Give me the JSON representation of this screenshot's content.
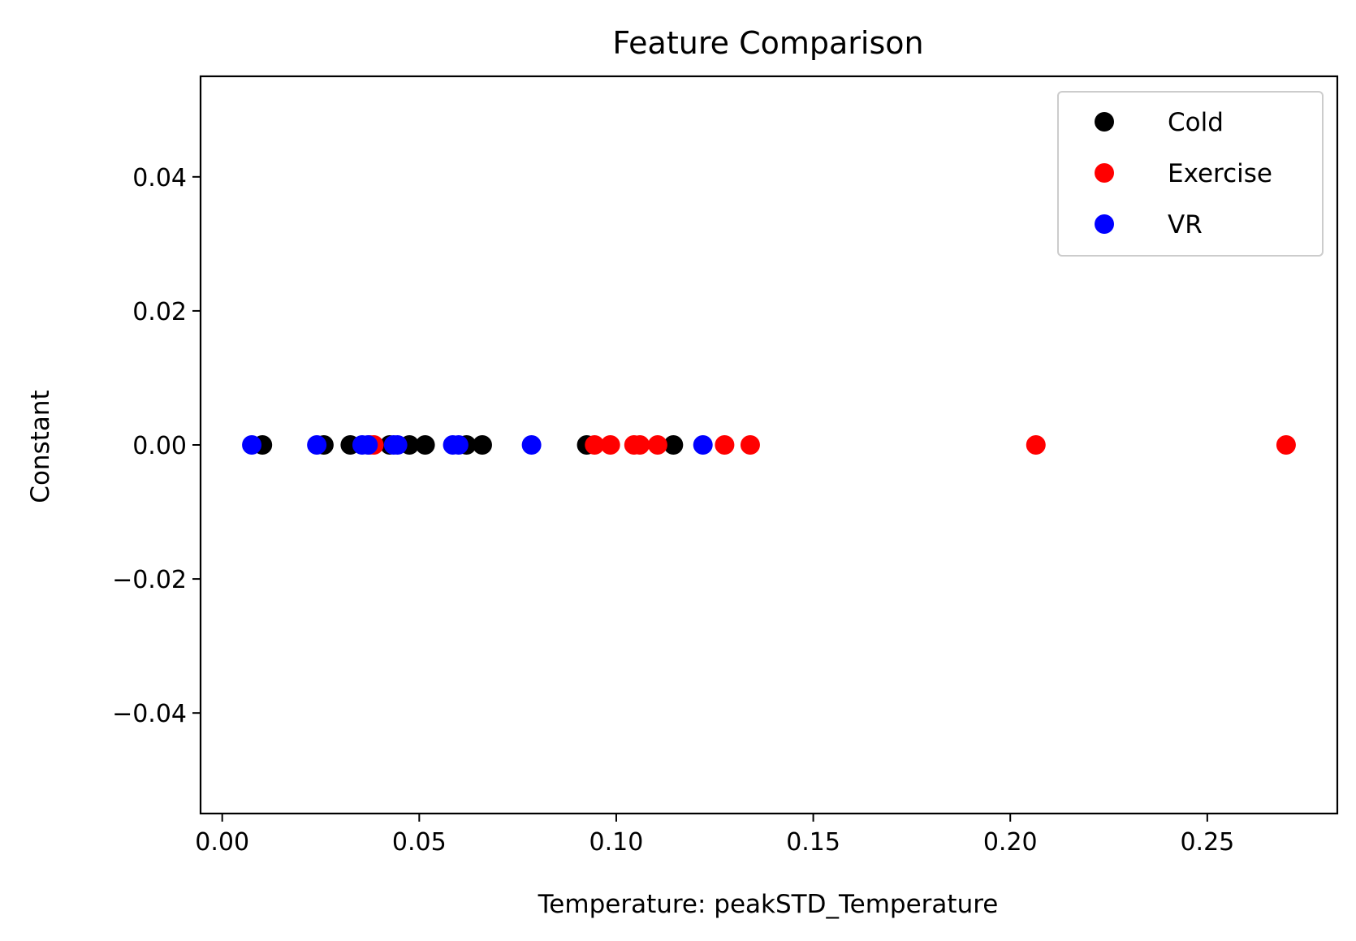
{
  "chart_data": {
    "type": "scatter",
    "title": "Feature Comparison",
    "xlabel": "Temperature: peakSTD_Temperature",
    "ylabel": "Constant",
    "xlim": [
      -0.0055,
      0.283
    ],
    "ylim": [
      -0.055,
      0.055
    ],
    "xticks": [
      0.0,
      0.05,
      0.1,
      0.15,
      0.2,
      0.25
    ],
    "xtick_labels": [
      "0.00",
      "0.05",
      "0.10",
      "0.15",
      "0.20",
      "0.25"
    ],
    "yticks": [
      0.04,
      0.02,
      0.0,
      -0.02,
      -0.04
    ],
    "ytick_labels": [
      "0.04",
      "0.02",
      "0.00",
      "−0.02",
      "−0.04"
    ],
    "grid": false,
    "legend_position": "top-right",
    "series": [
      {
        "name": "Cold",
        "color": "#000000",
        "x": [
          0.0102,
          0.0258,
          0.0325,
          0.0425,
          0.0475,
          0.0515,
          0.062,
          0.066,
          0.0925,
          0.1145
        ],
        "y": [
          0,
          0,
          0,
          0,
          0,
          0,
          0,
          0,
          0,
          0
        ]
      },
      {
        "name": "Exercise",
        "color": "#ff0000",
        "x": [
          0.0375,
          0.0385,
          0.0945,
          0.0985,
          0.1045,
          0.106,
          0.1105,
          0.1275,
          0.134,
          0.2065,
          0.27
        ],
        "y": [
          0,
          0,
          0,
          0,
          0,
          0,
          0,
          0,
          0,
          0,
          0
        ]
      },
      {
        "name": "VR",
        "color": "#0000ff",
        "x": [
          0.0075,
          0.024,
          0.0355,
          0.037,
          0.0435,
          0.0445,
          0.0585,
          0.06,
          0.0785,
          0.122
        ],
        "y": [
          0,
          0,
          0,
          0,
          0,
          0,
          0,
          0,
          0,
          0
        ]
      }
    ]
  }
}
